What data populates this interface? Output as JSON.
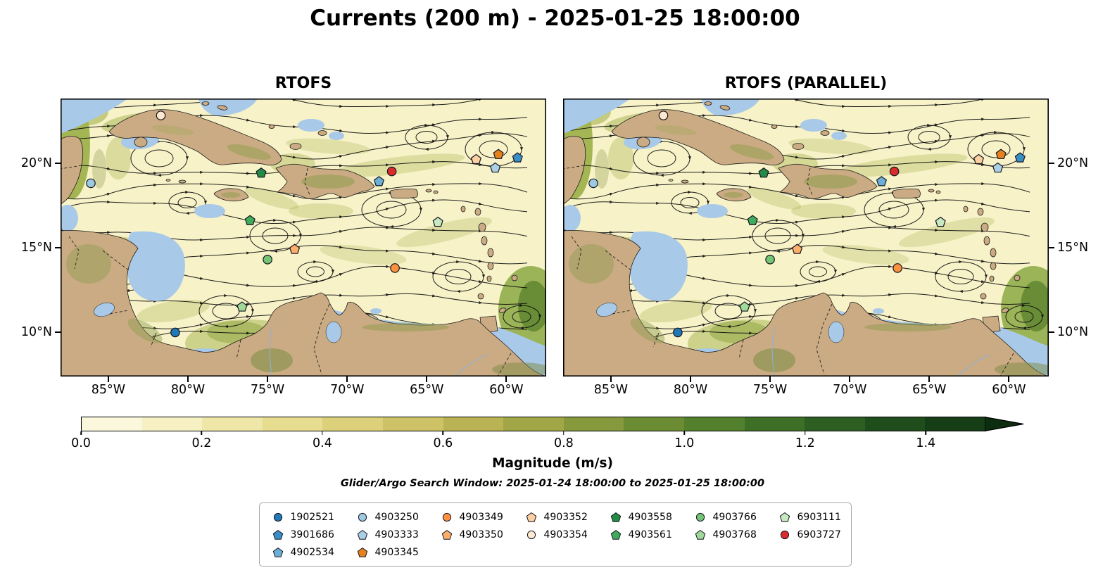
{
  "title": "Currents (200 m) - 2025-01-25 18:00:00",
  "panels": [
    {
      "title": "RTOFS"
    },
    {
      "title": "RTOFS (PARALLEL)"
    }
  ],
  "colorbar": {
    "label": "Magnitude (m/s)",
    "scale_max": 1.5,
    "ticks": [
      {
        "label": "0.0",
        "value": 0.0
      },
      {
        "label": "0.2",
        "value": 0.2
      },
      {
        "label": "0.4",
        "value": 0.4
      },
      {
        "label": "0.6",
        "value": 0.6
      },
      {
        "label": "0.8",
        "value": 0.8
      },
      {
        "label": "1.0",
        "value": 1.0
      },
      {
        "label": "1.2",
        "value": 1.2
      },
      {
        "label": "1.4",
        "value": 1.4
      }
    ],
    "colors": [
      "#fbf7dc",
      "#f6f0c2",
      "#efe7a8",
      "#e7dd90",
      "#dcd17a",
      "#cdc366",
      "#bab353",
      "#a1a746",
      "#86993c",
      "#6b8c33",
      "#52802c",
      "#3d7026",
      "#2c5f21",
      "#1f4e1c",
      "#153d16"
    ],
    "arrow_color": "#0d2d11"
  },
  "search_window": "Glider/Argo Search Window: 2025-01-24 18:00:00 to 2025-01-25 18:00:00",
  "legend": {
    "columns": [
      [
        "1902521",
        "3901686",
        "4902534"
      ],
      [
        "4903250",
        "4903333",
        "4903345"
      ],
      [
        "4903349",
        "4903350"
      ],
      [
        "4903352",
        "4903354"
      ],
      [
        "4903558",
        "4903561"
      ],
      [
        "4903766",
        "4903768"
      ],
      [
        "6903111",
        "6903727"
      ]
    ]
  },
  "chart_data": {
    "type": "scatter",
    "title": "Currents (200 m) - 2025-01-25 18:00:00",
    "subtitle": "Glider/Argo Search Window: 2025-01-24 18:00:00 to 2025-01-25 18:00:00",
    "panels": [
      "RTOFS",
      "RTOFS (PARALLEL)"
    ],
    "map_extent": {
      "lon_west": 88.0,
      "lon_east": 57.5,
      "lat_north": 23.8,
      "lat_south": 7.4,
      "region": "Caribbean Sea"
    },
    "x_ticks": [
      {
        "label": "85°W",
        "lon_w": 85
      },
      {
        "label": "80°W",
        "lon_w": 80
      },
      {
        "label": "75°W",
        "lon_w": 75
      },
      {
        "label": "70°W",
        "lon_w": 70
      },
      {
        "label": "65°W",
        "lon_w": 65
      },
      {
        "label": "60°W",
        "lon_w": 60
      }
    ],
    "y_ticks": [
      {
        "label": "20°N",
        "lat_n": 20
      },
      {
        "label": "15°N",
        "lat_n": 15
      },
      {
        "label": "10°N",
        "lat_n": 10
      }
    ],
    "colorbar": {
      "label": "Magnitude (m/s)",
      "vmin": 0.0,
      "vmax": 1.4,
      "tick_values": [
        0.0,
        0.2,
        0.4,
        0.6,
        0.8,
        1.0,
        1.2,
        1.4
      ],
      "extend": "max"
    },
    "land_color": "#cbab83",
    "shallow_color": "#a9c9e8",
    "streamline_color": "#0d0d0d",
    "floats": [
      {
        "id": "1902521",
        "shape": "circle",
        "color": "#2078b4",
        "lon_w": 80.8,
        "lat_n": 10.0
      },
      {
        "id": "3901686",
        "shape": "pentagon",
        "color": "#3a8ec6",
        "lon_w": 59.3,
        "lat_n": 20.3
      },
      {
        "id": "4902534",
        "shape": "pentagon",
        "color": "#6baed6",
        "lon_w": 68.0,
        "lat_n": 18.9
      },
      {
        "id": "4903250",
        "shape": "circle",
        "color": "#9ecae1",
        "lon_w": 86.1,
        "lat_n": 18.8
      },
      {
        "id": "4903333",
        "shape": "pentagon",
        "color": "#abd0e6",
        "lon_w": 60.7,
        "lat_n": 19.7
      },
      {
        "id": "4903345",
        "shape": "pentagon",
        "color": "#e6821e",
        "lon_w": 60.5,
        "lat_n": 20.5
      },
      {
        "id": "4903349",
        "shape": "circle",
        "color": "#fd9140",
        "lon_w": 67.0,
        "lat_n": 13.8
      },
      {
        "id": "4903350",
        "shape": "pentagon",
        "color": "#fdae6b",
        "lon_w": 73.3,
        "lat_n": 14.9
      },
      {
        "id": "4903352",
        "shape": "pentagon",
        "color": "#fdd0a2",
        "lon_w": 61.9,
        "lat_n": 20.2
      },
      {
        "id": "4903354",
        "shape": "circle",
        "color": "#fee8d0",
        "lon_w": 81.7,
        "lat_n": 22.8
      },
      {
        "id": "4903558",
        "shape": "pentagon",
        "color": "#238b45",
        "lon_w": 75.4,
        "lat_n": 19.4
      },
      {
        "id": "4903561",
        "shape": "pentagon",
        "color": "#41ab5d",
        "lon_w": 76.1,
        "lat_n": 16.6
      },
      {
        "id": "4903766",
        "shape": "circle",
        "color": "#74c476",
        "lon_w": 75.0,
        "lat_n": 14.3
      },
      {
        "id": "4903768",
        "shape": "pentagon",
        "color": "#a1d99b",
        "lon_w": 76.6,
        "lat_n": 11.5
      },
      {
        "id": "6903111",
        "shape": "pentagon",
        "color": "#c7e9c0",
        "lon_w": 64.3,
        "lat_n": 16.5
      },
      {
        "id": "6903727",
        "shape": "circle",
        "color": "#d92b2b",
        "lon_w": 67.2,
        "lat_n": 19.5
      }
    ]
  }
}
